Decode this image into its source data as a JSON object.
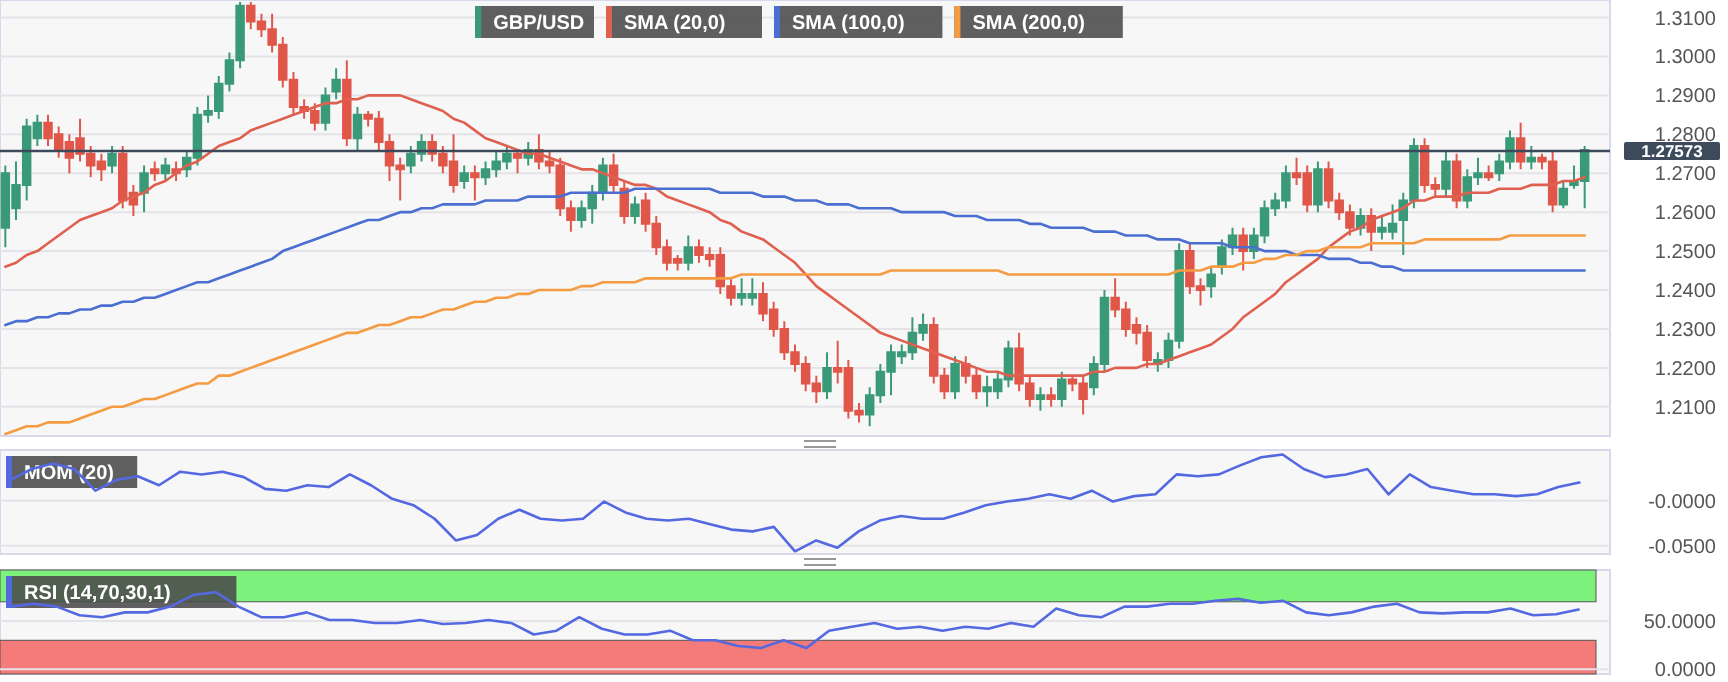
{
  "chart_data": [
    {
      "type": "candlestick",
      "categories": [
        null,
        null,
        null,
        null,
        null,
        null,
        null,
        null,
        null,
        null,
        null,
        null,
        null,
        null,
        null,
        null,
        null,
        null,
        null,
        null,
        null,
        null,
        null,
        null,
        null,
        null,
        null,
        null,
        null,
        null,
        null,
        null,
        null,
        null,
        null,
        null,
        null,
        null,
        null,
        null,
        null,
        null,
        null,
        null,
        null,
        null,
        null,
        null,
        null,
        null,
        null,
        null,
        null,
        null,
        null,
        null,
        null,
        null,
        null,
        null,
        null,
        null,
        null,
        null,
        null,
        null,
        null,
        null,
        null,
        null,
        null,
        null,
        null,
        null,
        null,
        null,
        null,
        null,
        null,
        null,
        null,
        null,
        null,
        null,
        null,
        null,
        null,
        null,
        null,
        null,
        null,
        null,
        null,
        null,
        null,
        null,
        null,
        null,
        null,
        null,
        null,
        null,
        null,
        null,
        null,
        null,
        null,
        null,
        null,
        null,
        null,
        null,
        null,
        null,
        null,
        null,
        null,
        null,
        null,
        null,
        null,
        null,
        null,
        null,
        null,
        null,
        null,
        null,
        null,
        null,
        null,
        null,
        null,
        null,
        null,
        null,
        null,
        null,
        null,
        null,
        null,
        null,
        null,
        null,
        null,
        null,
        null,
        null,
        null
      ],
      "ylim": [
        1.2025,
        1.3145
      ],
      "yticks": [
        {
          "value": 1.21,
          "label": "1.2100"
        },
        {
          "value": 1.22,
          "label": "1.2200"
        },
        {
          "value": 1.23,
          "label": "1.2300"
        },
        {
          "value": 1.24,
          "label": "1.2400"
        },
        {
          "value": 1.25,
          "label": "1.2500"
        },
        {
          "value": 1.26,
          "label": "1.2600"
        },
        {
          "value": 1.27,
          "label": "1.2700"
        },
        {
          "value": 1.28,
          "label": "1.2800"
        },
        {
          "value": 1.29,
          "label": "1.2900"
        },
        {
          "value": 1.3,
          "label": "1.3000"
        },
        {
          "value": 1.31,
          "label": "1.3100"
        }
      ],
      "grid": "y",
      "legend": "top",
      "ref_lines": [
        {
          "axis": "y",
          "value": 1.27573,
          "label": "1.27573",
          "color": "#3d4a5c"
        }
      ],
      "series": [
        {
          "name": "GBP/USD",
          "colors": [
            "#3a9a78",
            "#3a9a78",
            "#3a9a78",
            "#3a9a78",
            "#e0574a",
            "#e0574a",
            "#e0574a",
            "#e0574a",
            "#e0574a",
            "#e0574a",
            "#3a9a78",
            "#e0574a",
            "#e0574a",
            "#3a9a78",
            "#e0574a",
            "#3a9a78",
            "#e0574a",
            "#3a9a78",
            "#3a9a78",
            "#3a9a78",
            "#3a9a78",
            "#3a9a78",
            "#3a9a78",
            "#e0574a",
            "#e0574a",
            "#e0574a",
            "#e0574a",
            "#e0574a",
            "#e0574a",
            "#e0574a",
            "#3a9a78",
            "#3a9a78",
            "#e0574a",
            "#3a9a78",
            "#e0574a",
            "#e0574a",
            "#e0574a",
            "#e0574a",
            "#3a9a78",
            "#3a9a78",
            "#e0574a",
            "#e0574a",
            "#e0574a",
            "#3a9a78",
            "#e0574a",
            "#3a9a78",
            "#3a9a78",
            "#3a9a78",
            "#e0574a",
            "#3a9a78",
            "#e0574a",
            "#e0574a",
            "#e0574a",
            "#e0574a",
            "#3a9a78",
            "#3a9a78",
            "#3a9a78",
            "#e0574a",
            "#e0574a",
            "#3a9a78",
            "#e0574a",
            "#e0574a",
            "#e0574a",
            "#e0574a",
            "#3a9a78",
            "#e0574a",
            "#e0574a",
            "#e0574a",
            "#e0574a",
            "#3a9a78",
            "#3a9a78",
            "#e0574a",
            "#e0574a",
            "#e0574a",
            "#e0574a",
            "#e0574a",
            "#e0574a",
            "#3a9a78",
            "#e0574a",
            "#e0574a",
            "#e0574a",
            "#3a9a78",
            "#3a9a78",
            "#3a9a78",
            "#3a9a78",
            "#3a9a78",
            "#3a9a78",
            "#e0574a",
            "#e0574a",
            "#3a9a78",
            "#e0574a",
            "#e0574a",
            "#3a9a78",
            "#3a9a78",
            "#3a9a78",
            "#e0574a",
            "#e0574a",
            "#3a9a78",
            "#e0574a",
            "#3a9a78",
            "#e0574a",
            "#e0574a",
            "#3a9a78",
            "#3a9a78",
            "#e0574a",
            "#e0574a",
            "#e0574a",
            "#e0574a",
            "#3a9a78",
            "#3a9a78",
            "#3a9a78",
            "#e0574a",
            "#e0574a",
            "#3a9a78",
            "#3a9a78",
            "#3a9a78",
            "#e0574a",
            "#3a9a78",
            "#3a9a78",
            "#3a9a78",
            "#3a9a78",
            "#e0574a",
            "#e0574a",
            "#3a9a78",
            "#e0574a",
            "#e0574a",
            "#e0574a",
            "#3a9a78",
            "#e0574a",
            "#3a9a78",
            "#3a9a78",
            "#3a9a78",
            "#3a9a78",
            "#e0574a",
            "#e0574a",
            "#3a9a78",
            "#e0574a",
            "#3a9a78",
            "#3a9a78",
            "#e0574a",
            "#3a9a78",
            "#3a9a78",
            "#e0574a",
            "#3a9a78",
            "#e0574a",
            "#e0574a",
            "#3a9a78",
            "#3a9a78",
            "#3a9a78"
          ],
          "ohlc": [
            [
              1.256,
              1.272,
              1.251,
              1.27
            ],
            [
              1.261,
              1.273,
              1.258,
              1.267
            ],
            [
              1.267,
              1.284,
              1.263,
              1.282
            ],
            [
              1.279,
              1.285,
              1.277,
              1.283
            ],
            [
              1.283,
              1.285,
              1.277,
              1.279
            ],
            [
              1.28,
              1.282,
              1.274,
              1.276
            ],
            [
              1.278,
              1.28,
              1.27,
              1.274
            ],
            [
              1.279,
              1.284,
              1.273,
              1.275
            ],
            [
              1.275,
              1.277,
              1.269,
              1.272
            ],
            [
              1.273,
              1.275,
              1.268,
              1.271
            ],
            [
              1.272,
              1.277,
              1.27,
              1.275
            ],
            [
              1.275,
              1.277,
              1.261,
              1.263
            ],
            [
              1.265,
              1.267,
              1.259,
              1.262
            ],
            [
              1.265,
              1.272,
              1.26,
              1.27
            ],
            [
              1.271,
              1.273,
              1.268,
              1.27
            ],
            [
              1.27,
              1.274,
              1.268,
              1.272
            ],
            [
              1.271,
              1.273,
              1.268,
              1.27
            ],
            [
              1.271,
              1.276,
              1.269,
              1.274
            ],
            [
              1.274,
              1.287,
              1.272,
              1.285
            ],
            [
              1.285,
              1.29,
              1.283,
              1.286
            ],
            [
              1.286,
              1.295,
              1.284,
              1.293
            ],
            [
              1.293,
              1.301,
              1.291,
              1.299
            ],
            [
              1.299,
              1.314,
              1.297,
              1.313
            ],
            [
              1.313,
              1.314,
              1.307,
              1.309
            ],
            [
              1.309,
              1.311,
              1.305,
              1.307
            ],
            [
              1.307,
              1.311,
              1.301,
              1.303
            ],
            [
              1.303,
              1.305,
              1.292,
              1.294
            ],
            [
              1.294,
              1.296,
              1.285,
              1.287
            ],
            [
              1.287,
              1.289,
              1.284,
              1.286
            ],
            [
              1.286,
              1.288,
              1.281,
              1.283
            ],
            [
              1.283,
              1.292,
              1.281,
              1.29
            ],
            [
              1.291,
              1.297,
              1.289,
              1.294
            ],
            [
              1.294,
              1.299,
              1.277,
              1.279
            ],
            [
              1.279,
              1.287,
              1.276,
              1.285
            ],
            [
              1.285,
              1.286,
              1.282,
              1.284
            ],
            [
              1.284,
              1.286,
              1.276,
              1.278
            ],
            [
              1.278,
              1.28,
              1.268,
              1.272
            ],
            [
              1.272,
              1.274,
              1.263,
              1.271
            ],
            [
              1.272,
              1.277,
              1.27,
              1.275
            ],
            [
              1.275,
              1.28,
              1.273,
              1.278
            ],
            [
              1.278,
              1.28,
              1.273,
              1.275
            ],
            [
              1.275,
              1.277,
              1.27,
              1.272
            ],
            [
              1.273,
              1.28,
              1.265,
              1.267
            ],
            [
              1.268,
              1.272,
              1.266,
              1.27
            ],
            [
              1.27,
              1.272,
              1.263,
              1.269
            ],
            [
              1.269,
              1.273,
              1.267,
              1.271
            ],
            [
              1.271,
              1.276,
              1.269,
              1.273
            ],
            [
              1.273,
              1.277,
              1.271,
              1.275
            ],
            [
              1.275,
              1.276,
              1.27,
              1.274
            ],
            [
              1.274,
              1.278,
              1.272,
              1.276
            ],
            [
              1.276,
              1.28,
              1.271,
              1.273
            ],
            [
              1.273,
              1.276,
              1.27,
              1.272
            ],
            [
              1.272,
              1.274,
              1.259,
              1.261
            ],
            [
              1.261,
              1.263,
              1.255,
              1.258
            ],
            [
              1.258,
              1.263,
              1.256,
              1.261
            ],
            [
              1.261,
              1.267,
              1.257,
              1.265
            ],
            [
              1.265,
              1.274,
              1.263,
              1.272
            ],
            [
              1.272,
              1.275,
              1.265,
              1.267
            ],
            [
              1.266,
              1.268,
              1.257,
              1.259
            ],
            [
              1.259,
              1.264,
              1.257,
              1.262
            ],
            [
              1.263,
              1.265,
              1.255,
              1.257
            ],
            [
              1.257,
              1.259,
              1.249,
              1.251
            ],
            [
              1.251,
              1.253,
              1.245,
              1.247
            ],
            [
              1.248,
              1.249,
              1.245,
              1.247
            ],
            [
              1.247,
              1.254,
              1.245,
              1.251
            ],
            [
              1.251,
              1.253,
              1.247,
              1.249
            ],
            [
              1.249,
              1.251,
              1.246,
              1.248
            ],
            [
              1.249,
              1.251,
              1.239,
              1.241
            ],
            [
              1.241,
              1.243,
              1.236,
              1.238
            ],
            [
              1.238,
              1.243,
              1.236,
              1.239
            ],
            [
              1.238,
              1.243,
              1.236,
              1.239
            ],
            [
              1.239,
              1.242,
              1.232,
              1.234
            ],
            [
              1.235,
              1.237,
              1.228,
              1.23
            ],
            [
              1.23,
              1.232,
              1.222,
              1.224
            ],
            [
              1.224,
              1.226,
              1.219,
              1.221
            ],
            [
              1.221,
              1.223,
              1.214,
              1.216
            ],
            [
              1.216,
              1.218,
              1.211,
              1.214
            ],
            [
              1.214,
              1.224,
              1.212,
              1.22
            ],
            [
              1.22,
              1.227,
              1.216,
              1.219
            ],
            [
              1.22,
              1.222,
              1.207,
              1.209
            ],
            [
              1.209,
              1.211,
              1.206,
              1.208
            ],
            [
              1.208,
              1.215,
              1.205,
              1.213
            ],
            [
              1.213,
              1.221,
              1.211,
              1.219
            ],
            [
              1.219,
              1.226,
              1.213,
              1.224
            ],
            [
              1.223,
              1.226,
              1.221,
              1.224
            ],
            [
              1.224,
              1.233,
              1.222,
              1.229
            ],
            [
              1.229,
              1.234,
              1.227,
              1.231
            ],
            [
              1.231,
              1.233,
              1.216,
              1.218
            ],
            [
              1.218,
              1.22,
              1.212,
              1.214
            ],
            [
              1.214,
              1.223,
              1.212,
              1.221
            ],
            [
              1.221,
              1.223,
              1.216,
              1.218
            ],
            [
              1.218,
              1.22,
              1.212,
              1.214
            ],
            [
              1.214,
              1.218,
              1.21,
              1.215
            ],
            [
              1.214,
              1.219,
              1.212,
              1.217
            ],
            [
              1.217,
              1.227,
              1.215,
              1.225
            ],
            [
              1.225,
              1.229,
              1.214,
              1.216
            ],
            [
              1.216,
              1.218,
              1.21,
              1.212
            ],
            [
              1.212,
              1.215,
              1.209,
              1.213
            ],
            [
              1.213,
              1.215,
              1.21,
              1.212
            ],
            [
              1.212,
              1.219,
              1.21,
              1.217
            ],
            [
              1.217,
              1.218,
              1.214,
              1.216
            ],
            [
              1.216,
              1.218,
              1.208,
              1.212
            ],
            [
              1.215,
              1.223,
              1.213,
              1.221
            ],
            [
              1.221,
              1.24,
              1.219,
              1.238
            ],
            [
              1.238,
              1.243,
              1.233,
              1.235
            ],
            [
              1.235,
              1.237,
              1.228,
              1.23
            ],
            [
              1.231,
              1.233,
              1.226,
              1.229
            ],
            [
              1.229,
              1.231,
              1.22,
              1.222
            ],
            [
              1.221,
              1.224,
              1.219,
              1.222
            ],
            [
              1.222,
              1.229,
              1.22,
              1.227
            ],
            [
              1.227,
              1.252,
              1.225,
              1.25
            ],
            [
              1.25,
              1.252,
              1.239,
              1.241
            ],
            [
              1.241,
              1.243,
              1.236,
              1.24
            ],
            [
              1.241,
              1.246,
              1.238,
              1.244
            ],
            [
              1.246,
              1.253,
              1.244,
              1.251
            ],
            [
              1.251,
              1.256,
              1.249,
              1.254
            ],
            [
              1.254,
              1.256,
              1.245,
              1.25
            ],
            [
              1.25,
              1.256,
              1.248,
              1.254
            ],
            [
              1.254,
              1.263,
              1.252,
              1.261
            ],
            [
              1.261,
              1.265,
              1.259,
              1.263
            ],
            [
              1.263,
              1.272,
              1.261,
              1.27
            ],
            [
              1.27,
              1.274,
              1.267,
              1.269
            ],
            [
              1.27,
              1.272,
              1.26,
              1.262
            ],
            [
              1.262,
              1.273,
              1.26,
              1.271
            ],
            [
              1.271,
              1.273,
              1.261,
              1.263
            ],
            [
              1.263,
              1.265,
              1.258,
              1.26
            ],
            [
              1.26,
              1.262,
              1.254,
              1.256
            ],
            [
              1.256,
              1.261,
              1.254,
              1.259
            ],
            [
              1.259,
              1.261,
              1.25,
              1.255
            ],
            [
              1.255,
              1.259,
              1.253,
              1.256
            ],
            [
              1.255,
              1.262,
              1.253,
              1.257
            ],
            [
              1.258,
              1.265,
              1.249,
              1.263
            ],
            [
              1.263,
              1.279,
              1.261,
              1.277
            ],
            [
              1.277,
              1.279,
              1.265,
              1.267
            ],
            [
              1.267,
              1.269,
              1.264,
              1.266
            ],
            [
              1.266,
              1.276,
              1.264,
              1.273
            ],
            [
              1.273,
              1.275,
              1.261,
              1.263
            ],
            [
              1.263,
              1.271,
              1.261,
              1.269
            ],
            [
              1.269,
              1.274,
              1.267,
              1.27
            ],
            [
              1.27,
              1.272,
              1.268,
              1.269
            ],
            [
              1.27,
              1.275,
              1.268,
              1.273
            ],
            [
              1.273,
              1.281,
              1.271,
              1.279
            ],
            [
              1.279,
              1.283,
              1.271,
              1.273
            ],
            [
              1.273,
              1.277,
              1.271,
              1.274
            ],
            [
              1.274,
              1.275,
              1.271,
              1.273
            ],
            [
              1.273,
              1.276,
              1.26,
              1.262
            ],
            [
              1.262,
              1.268,
              1.261,
              1.266
            ],
            [
              1.267,
              1.272,
              1.266,
              1.268
            ],
            [
              1.268,
              1.277,
              1.261,
              1.276
            ]
          ]
        },
        {
          "type": "line",
          "name": "SMA (20,0)",
          "color": "#e06050",
          "values": [
            1.246,
            1.247,
            1.249,
            1.25,
            1.252,
            1.254,
            1.256,
            1.258,
            1.259,
            1.26,
            1.261,
            1.263,
            1.264,
            1.265,
            1.267,
            1.268,
            1.27,
            1.272,
            1.273,
            1.275,
            1.277,
            1.278,
            1.279,
            1.281,
            1.282,
            1.283,
            1.284,
            1.285,
            1.286,
            1.287,
            1.288,
            1.288,
            1.289,
            1.289,
            1.29,
            1.29,
            1.29,
            1.29,
            1.289,
            1.288,
            1.287,
            1.286,
            1.284,
            1.283,
            1.281,
            1.279,
            1.278,
            1.277,
            1.276,
            1.275,
            1.275,
            1.274,
            1.273,
            1.272,
            1.271,
            1.271,
            1.27,
            1.269,
            1.268,
            1.267,
            1.267,
            1.266,
            1.264,
            1.263,
            1.262,
            1.261,
            1.26,
            1.258,
            1.257,
            1.255,
            1.254,
            1.253,
            1.251,
            1.249,
            1.247,
            1.244,
            1.241,
            1.239,
            1.237,
            1.235,
            1.233,
            1.231,
            1.229,
            1.228,
            1.227,
            1.226,
            1.225,
            1.224,
            1.223,
            1.222,
            1.221,
            1.22,
            1.219,
            1.219,
            1.218,
            1.218,
            1.218,
            1.218,
            1.218,
            1.218,
            1.218,
            1.218,
            1.219,
            1.219,
            1.22,
            1.22,
            1.22,
            1.221,
            1.221,
            1.222,
            1.223,
            1.224,
            1.225,
            1.226,
            1.228,
            1.23,
            1.233,
            1.235,
            1.237,
            1.239,
            1.242,
            1.244,
            1.246,
            1.248,
            1.251,
            1.253,
            1.255,
            1.256,
            1.258,
            1.259,
            1.26,
            1.261,
            1.263,
            1.263,
            1.264,
            1.264,
            1.264,
            1.265,
            1.265,
            1.265,
            1.266,
            1.266,
            1.266,
            1.267,
            1.267,
            1.267,
            1.268,
            1.268,
            1.269
          ]
        },
        {
          "type": "line",
          "name": "SMA (100,0)",
          "color": "#4a6fd0",
          "values": [
            1.231,
            1.232,
            1.232,
            1.233,
            1.233,
            1.234,
            1.234,
            1.235,
            1.235,
            1.236,
            1.236,
            1.237,
            1.237,
            1.238,
            1.238,
            1.239,
            1.24,
            1.241,
            1.242,
            1.242,
            1.243,
            1.244,
            1.245,
            1.246,
            1.247,
            1.248,
            1.25,
            1.251,
            1.252,
            1.253,
            1.254,
            1.255,
            1.256,
            1.257,
            1.258,
            1.258,
            1.259,
            1.26,
            1.26,
            1.261,
            1.261,
            1.262,
            1.262,
            1.262,
            1.262,
            1.263,
            1.263,
            1.263,
            1.263,
            1.264,
            1.264,
            1.264,
            1.264,
            1.265,
            1.265,
            1.265,
            1.265,
            1.265,
            1.265,
            1.266,
            1.266,
            1.266,
            1.266,
            1.266,
            1.266,
            1.266,
            1.266,
            1.265,
            1.265,
            1.265,
            1.265,
            1.264,
            1.264,
            1.264,
            1.263,
            1.263,
            1.263,
            1.262,
            1.262,
            1.262,
            1.261,
            1.261,
            1.261,
            1.261,
            1.26,
            1.26,
            1.26,
            1.26,
            1.26,
            1.259,
            1.259,
            1.259,
            1.258,
            1.258,
            1.258,
            1.258,
            1.257,
            1.257,
            1.256,
            1.256,
            1.256,
            1.256,
            1.255,
            1.255,
            1.255,
            1.254,
            1.254,
            1.254,
            1.253,
            1.253,
            1.253,
            1.252,
            1.252,
            1.252,
            1.252,
            1.251,
            1.251,
            1.251,
            1.25,
            1.25,
            1.25,
            1.249,
            1.249,
            1.249,
            1.248,
            1.248,
            1.248,
            1.247,
            1.247,
            1.246,
            1.246,
            1.245,
            1.245,
            1.245,
            1.245,
            1.245,
            1.245,
            1.245,
            1.245,
            1.245,
            1.245,
            1.245,
            1.245,
            1.245,
            1.245,
            1.245,
            1.245,
            1.245,
            1.245
          ]
        },
        {
          "type": "line",
          "name": "SMA (200,0)",
          "color": "#f59b42",
          "values": [
            1.203,
            1.204,
            1.205,
            1.205,
            1.206,
            1.206,
            1.206,
            1.207,
            1.208,
            1.209,
            1.21,
            1.21,
            1.211,
            1.212,
            1.212,
            1.213,
            1.214,
            1.215,
            1.216,
            1.216,
            1.218,
            1.218,
            1.219,
            1.22,
            1.221,
            1.222,
            1.223,
            1.224,
            1.225,
            1.226,
            1.227,
            1.228,
            1.229,
            1.229,
            1.23,
            1.231,
            1.231,
            1.232,
            1.233,
            1.233,
            1.234,
            1.235,
            1.235,
            1.236,
            1.237,
            1.237,
            1.238,
            1.238,
            1.239,
            1.239,
            1.24,
            1.24,
            1.24,
            1.24,
            1.241,
            1.241,
            1.242,
            1.242,
            1.242,
            1.242,
            1.243,
            1.243,
            1.243,
            1.243,
            1.243,
            1.243,
            1.243,
            1.243,
            1.243,
            1.244,
            1.244,
            1.244,
            1.244,
            1.244,
            1.244,
            1.244,
            1.244,
            1.244,
            1.244,
            1.244,
            1.244,
            1.244,
            1.244,
            1.245,
            1.245,
            1.245,
            1.245,
            1.245,
            1.245,
            1.245,
            1.245,
            1.245,
            1.245,
            1.245,
            1.244,
            1.244,
            1.244,
            1.244,
            1.244,
            1.244,
            1.244,
            1.244,
            1.244,
            1.244,
            1.244,
            1.244,
            1.244,
            1.244,
            1.244,
            1.244,
            1.245,
            1.245,
            1.245,
            1.246,
            1.246,
            1.246,
            1.247,
            1.247,
            1.248,
            1.248,
            1.249,
            1.249,
            1.25,
            1.25,
            1.251,
            1.251,
            1.251,
            1.251,
            1.252,
            1.252,
            1.252,
            1.252,
            1.252,
            1.253,
            1.253,
            1.253,
            1.253,
            1.253,
            1.253,
            1.253,
            1.253,
            1.254,
            1.254,
            1.254,
            1.254,
            1.254,
            1.254,
            1.254,
            1.254
          ]
        }
      ]
    },
    {
      "type": "line",
      "categories": [
        null,
        null,
        null,
        null,
        null,
        null,
        null,
        null,
        null,
        null,
        null,
        null,
        null,
        null,
        null,
        null,
        null,
        null,
        null,
        null,
        null,
        null,
        null,
        null,
        null,
        null,
        null,
        null,
        null,
        null,
        null,
        null,
        null,
        null,
        null,
        null,
        null,
        null,
        null,
        null,
        null,
        null,
        null,
        null,
        null,
        null,
        null,
        null,
        null,
        null,
        null,
        null,
        null,
        null,
        null,
        null,
        null,
        null,
        null,
        null,
        null,
        null,
        null,
        null,
        null,
        null,
        null,
        null,
        null,
        null,
        null,
        null,
        null,
        null,
        null
      ],
      "ylim": [
        -0.059,
        0.056
      ],
      "yticks": [
        {
          "value": -0.05,
          "label": "-0.0500"
        },
        {
          "value": 0,
          "label": "-0.0000"
        }
      ],
      "grid": "y",
      "legend": "top left",
      "series": [
        {
          "name": "MOM (20)",
          "color": "#5468e0",
          "values": [
            0.023,
            0.035,
            0.041,
            0.035,
            0.011,
            0.023,
            0.027,
            0.017,
            0.032,
            0.029,
            0.032,
            0.026,
            0.013,
            0.011,
            0.017,
            0.015,
            0.029,
            0.017,
            0.002,
            -0.005,
            -0.02,
            -0.044,
            -0.038,
            -0.02,
            -0.01,
            -0.02,
            -0.022,
            -0.02,
            -0.001,
            -0.013,
            -0.02,
            -0.022,
            -0.02,
            -0.026,
            -0.032,
            -0.034,
            -0.029,
            -0.056,
            -0.044,
            -0.052,
            -0.034,
            -0.022,
            -0.017,
            -0.02,
            -0.02,
            -0.013,
            -0.005,
            -0.001,
            0.002,
            0.007,
            0.002,
            0.011,
            -0.001,
            0.005,
            0.007,
            0.029,
            0.027,
            0.029,
            0.039,
            0.048,
            0.051,
            0.035,
            0.026,
            0.029,
            0.035,
            0.007,
            0.029,
            0.015,
            0.011,
            0.007,
            0.007,
            0.005,
            0.007,
            0.015,
            0.02
          ]
        }
      ]
    },
    {
      "type": "line",
      "categories": [
        null,
        null,
        null,
        null,
        null,
        null,
        null,
        null,
        null,
        null,
        null,
        null,
        null,
        null,
        null,
        null,
        null,
        null,
        null,
        null,
        null,
        null,
        null,
        null,
        null,
        null,
        null,
        null,
        null,
        null,
        null,
        null,
        null,
        null,
        null,
        null,
        null,
        null,
        null,
        null,
        null,
        null,
        null,
        null,
        null,
        null,
        null,
        null,
        null,
        null,
        null,
        null,
        null,
        null,
        null,
        null,
        null,
        null,
        null,
        null,
        null,
        null,
        null,
        null,
        null,
        null,
        null,
        null,
        null,
        null
      ],
      "ylim": [
        -5,
        103
      ],
      "yticks": [
        {
          "value": 0,
          "label": "0.0000"
        },
        {
          "value": 50,
          "label": "50.0000"
        }
      ],
      "grid": "y",
      "legend": "top left",
      "bands": [
        {
          "axis": "y",
          "from": 70,
          "to": 103,
          "color": "#7cf27c"
        },
        {
          "axis": "y",
          "from": -5,
          "to": 30,
          "color": "#f57a7a"
        }
      ],
      "series": [
        {
          "name": "RSI (14,70,30,1)",
          "color": "#5468e0",
          "values": [
            65,
            68,
            65,
            56,
            54,
            59,
            59,
            65,
            77,
            80,
            65,
            54,
            54,
            59,
            51,
            51,
            48,
            48,
            51,
            47,
            48,
            51,
            48,
            36,
            40,
            54,
            42,
            36,
            36,
            40,
            30,
            30,
            24,
            22,
            30,
            22,
            40,
            44,
            48,
            42,
            44,
            40,
            44,
            42,
            48,
            44,
            63,
            56,
            54,
            65,
            65,
            68,
            68,
            71,
            73,
            69,
            71,
            59,
            56,
            59,
            65,
            68,
            59,
            58,
            59,
            59,
            63,
            56,
            57,
            62
          ]
        }
      ]
    }
  ]
}
